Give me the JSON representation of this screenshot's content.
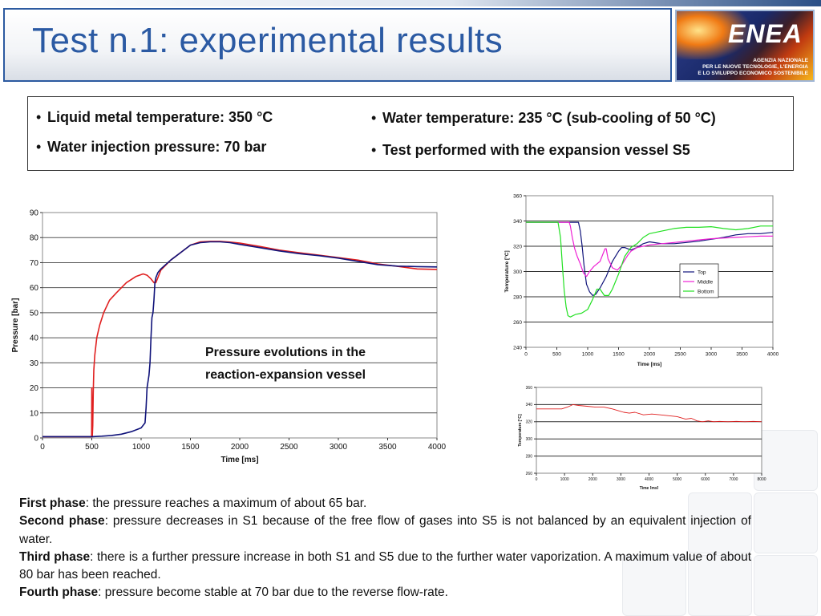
{
  "slide": {
    "title": "Test n.1: experimental results",
    "logo": {
      "name": "ENEA",
      "subtitle_lines": [
        "AGENZIA NAZIONALE",
        "PER LE NUOVE TECNOLOGIE, L'ENERGIA",
        "E LO SVILUPPO ECONOMICO SOSTENIBILE"
      ]
    },
    "bullets_left": [
      "Liquid metal temperature: 350 °C",
      "Water injection pressure: 70 bar"
    ],
    "bullets_right": [
      "Water temperature: 235 °C (sub-cooling of 50 °C)",
      "Test performed with the expansion vessel S5"
    ],
    "caption_lines": [
      "Pressure evolutions in the",
      "reaction-expansion vessel"
    ],
    "phases": [
      {
        "label": "First phase",
        "text": ": the pressure reaches a maximum of about 65 bar."
      },
      {
        "label": "Second phase",
        "text": ": pressure decreases in S1 because of the free flow of gases into S5 is not balanced by an equivalent injection of water."
      },
      {
        "label": "Third phase",
        "text": ": there is a further pressure increase in both S1 and S5 due to the further water vaporization. A maximum value of about 80 bar has been reached."
      },
      {
        "label": "Fourth phase",
        "text": ": pressure become stable at 70 bar due to the reverse flow-rate."
      }
    ]
  },
  "chart_data": [
    {
      "type": "line",
      "xlabel": "Time [ms]",
      "ylabel": "Pressure [bar]",
      "xlim": [
        0,
        4000
      ],
      "ylim": [
        0,
        90
      ],
      "xticks": [
        0,
        500,
        1000,
        1500,
        2000,
        2500,
        3000,
        3500,
        4000
      ],
      "yticks": [
        0,
        10,
        20,
        30,
        40,
        50,
        60,
        70,
        80,
        90
      ],
      "grid": true,
      "series": [
        {
          "color": "#e02020",
          "x": [
            0,
            498,
            500,
            505,
            510,
            515,
            520,
            530,
            550,
            580,
            620,
            680,
            750,
            850,
            950,
            1020,
            1060,
            1100,
            1130,
            1150,
            1170,
            1200,
            1300,
            1400,
            1500,
            1600,
            1700,
            1800,
            1900,
            2000,
            2200,
            2400,
            2600,
            2800,
            3000,
            3200,
            3400,
            3600,
            3800,
            4000
          ],
          "y": [
            0.5,
            0.5,
            20,
            0.5,
            5,
            18,
            27,
            33,
            40,
            45,
            50,
            55,
            58,
            62,
            64.5,
            65.5,
            65,
            63.5,
            62,
            62,
            64,
            67,
            71,
            74,
            77,
            78.3,
            78.5,
            78.5,
            78.2,
            77.8,
            76.5,
            75,
            74,
            73,
            72,
            71,
            69.5,
            68.5,
            67.5,
            67.3
          ]
        },
        {
          "color": "#10137a",
          "x": [
            0,
            500,
            600,
            700,
            800,
            900,
            1000,
            1040,
            1050,
            1060,
            1080,
            1090,
            1100,
            1110,
            1120,
            1130,
            1140,
            1150,
            1170,
            1200,
            1300,
            1400,
            1500,
            1600,
            1700,
            1800,
            1900,
            2000,
            2200,
            2400,
            2600,
            2800,
            3000,
            3200,
            3400,
            3600,
            3800,
            4000
          ],
          "y": [
            0.5,
            0.5,
            0.7,
            1,
            1.5,
            2.5,
            4,
            6,
            12,
            20,
            25,
            30,
            40,
            48,
            50,
            55,
            62,
            64,
            66,
            67.5,
            71,
            74,
            77,
            78,
            78.3,
            78.3,
            78,
            77.3,
            76,
            74.7,
            73.6,
            72.8,
            71.8,
            70.5,
            69.2,
            68.6,
            68.4,
            68.3
          ]
        }
      ]
    },
    {
      "type": "line",
      "xlabel": "Time [ms]",
      "ylabel": "Temperature [°C]",
      "xlim": [
        0,
        4000
      ],
      "ylim": [
        240,
        360
      ],
      "xticks": [
        0,
        500,
        1000,
        1500,
        2000,
        2500,
        3000,
        3500,
        4000
      ],
      "yticks": [
        240,
        260,
        280,
        300,
        320,
        340,
        360
      ],
      "grid": true,
      "legend_position": "middle-right",
      "series": [
        {
          "name": "Top",
          "color": "#10137a",
          "x": [
            0,
            850,
            880,
            910,
            940,
            980,
            1030,
            1080,
            1130,
            1200,
            1300,
            1400,
            1500,
            1550,
            1600,
            1700,
            1800,
            1900,
            2000,
            2200,
            2400,
            2600,
            2800,
            3000,
            3200,
            3400,
            3600,
            3800,
            4000
          ],
          "y": [
            339,
            339,
            332,
            320,
            305,
            290,
            284,
            281,
            282,
            287,
            296,
            308,
            316,
            319,
            319,
            317,
            319,
            322,
            323.5,
            322,
            322,
            323,
            324,
            325.5,
            327,
            329,
            330,
            330,
            331
          ]
        },
        {
          "name": "Middle",
          "color": "#ee22d4",
          "x": [
            0,
            700,
            720,
            750,
            790,
            830,
            880,
            930,
            980,
            1030,
            1100,
            1200,
            1280,
            1300,
            1330,
            1400,
            1480,
            1550,
            1600,
            1650,
            1700,
            1800,
            1900,
            2000,
            2200,
            2400,
            2600,
            2800,
            3000,
            3200,
            3400,
            3600,
            3800,
            4000
          ],
          "y": [
            339,
            339,
            336,
            327,
            318,
            312,
            306,
            299,
            296,
            300,
            304,
            308,
            318,
            318,
            310,
            303,
            301,
            305,
            309,
            313,
            316,
            319,
            320,
            321,
            322,
            323,
            324,
            325,
            326,
            326.5,
            327,
            327.5,
            328,
            328
          ]
        },
        {
          "name": "Bottom",
          "color": "#22e022",
          "x": [
            0,
            520,
            560,
            590,
            620,
            650,
            680,
            720,
            800,
            900,
            1000,
            1080,
            1150,
            1200,
            1270,
            1340,
            1400,
            1500,
            1600,
            1700,
            1800,
            1900,
            2000,
            2200,
            2400,
            2600,
            2800,
            3000,
            3200,
            3400,
            3600,
            3800,
            4000
          ],
          "y": [
            339,
            339,
            327,
            305,
            285,
            272,
            265,
            264,
            266,
            267,
            270,
            278,
            286,
            286,
            281,
            281,
            286,
            298,
            312,
            319,
            322,
            327,
            330,
            332,
            334,
            335,
            335,
            335.5,
            334,
            333,
            334,
            336,
            336
          ]
        }
      ]
    },
    {
      "type": "line",
      "xlabel": "Time [ms]",
      "ylabel": "Temperature [°C]",
      "xlim": [
        0,
        8000
      ],
      "ylim": [
        260,
        360
      ],
      "xticks": [
        0,
        1000,
        2000,
        3000,
        4000,
        5000,
        6000,
        7000,
        8000
      ],
      "yticks": [
        260,
        280,
        300,
        320,
        340,
        360
      ],
      "grid": true,
      "series": [
        {
          "color": "#e02020",
          "x": [
            0,
            600,
            900,
            1100,
            1300,
            1500,
            1800,
            2100,
            2400,
            2700,
            2900,
            3100,
            3300,
            3500,
            3800,
            4100,
            4400,
            4700,
            5000,
            5300,
            5500,
            5700,
            5900,
            6100,
            6300,
            6500,
            6800,
            7100,
            7400,
            7700,
            8000
          ],
          "y": [
            335,
            335,
            335,
            337,
            340,
            339,
            338,
            337,
            337,
            335,
            333,
            331,
            330,
            331,
            328,
            329,
            328,
            327,
            326,
            323,
            324,
            321,
            320,
            321,
            320,
            320.5,
            320,
            320.5,
            320,
            320.5,
            320
          ]
        }
      ]
    }
  ]
}
